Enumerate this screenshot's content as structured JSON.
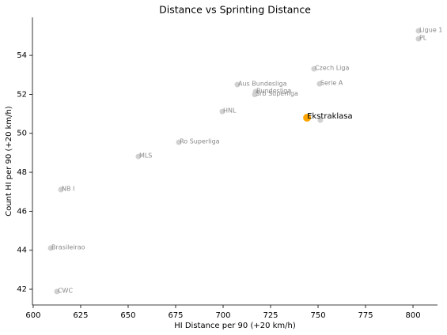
{
  "chart_data": {
    "type": "scatter",
    "title": "Distance vs Sprinting Distance",
    "xlabel": "HI Distance per 90 (+20 km/h)",
    "ylabel": "Count HI per 90 (+20 km/h)",
    "labels": [
      "Ligue 1",
      "PL",
      "Czech Liga",
      "Serie A",
      "Aus Bundesliga",
      "Bundesliga",
      "Srb Superliga",
      "HNL",
      "Ekstraklasa",
      null,
      "Ro Superliga",
      "MLS",
      "NB I",
      "Brasileirao",
      "CWC"
    ],
    "x": [
      802.9,
      802.9,
      747.9,
      750.8,
      707.5,
      717.1,
      716.7,
      699.6,
      744.2,
      751.2,
      676.7,
      655.4,
      614.6,
      609.2,
      612.5
    ],
    "values": [
      55.26,
      54.85,
      53.31,
      52.54,
      52.5,
      52.14,
      51.99,
      51.12,
      50.8,
      50.68,
      49.54,
      48.81,
      47.11,
      44.11,
      41.88
    ],
    "colors": [
      "#cccccc",
      "#cccccc",
      "#cccccc",
      "#cccccc",
      "#cccccc",
      "#cccccc",
      "#cccccc",
      "#cccccc",
      "#ffa500",
      "#cccccc",
      "#cccccc",
      "#cccccc",
      "#cccccc",
      "#cccccc",
      "#cccccc"
    ],
    "xlim": [
      599.6,
      812.9
    ],
    "ylim": [
      41.19,
      55.95
    ],
    "xticks": [
      600,
      625,
      650,
      675,
      700,
      725,
      750,
      775,
      800
    ],
    "yticks": [
      42,
      44,
      46,
      48,
      50,
      52,
      54
    ],
    "grid": false
  }
}
